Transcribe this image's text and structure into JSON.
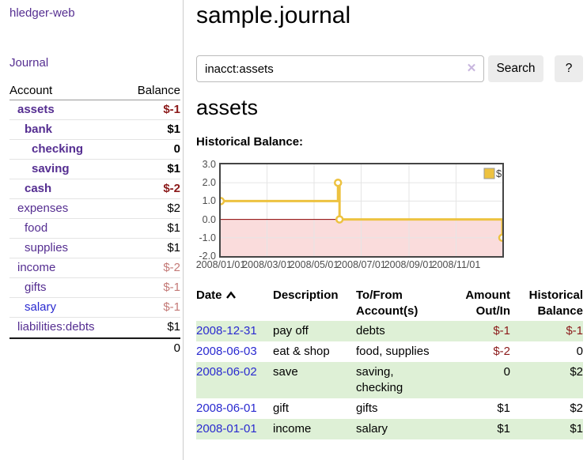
{
  "colors": {
    "link_visited_purple": "#552e91",
    "link_unvisited_blue": "#2a2ad0",
    "negative_red": "#8b1a1a",
    "negative_soft_red": "#c47a77",
    "row_stripe_green": "#def0d6",
    "button_gray": "#ececec"
  },
  "sidebar": {
    "brand": "hledger-web",
    "nav": [
      {
        "label": "Journal"
      }
    ],
    "accounts_table": {
      "headers": [
        "Account",
        "Balance"
      ],
      "rows": [
        {
          "account": "assets",
          "depth": 1,
          "emph": true,
          "link": "visited",
          "balance": "$-1",
          "bal_class": "neg"
        },
        {
          "account": "bank",
          "depth": 2,
          "emph": true,
          "link": "visited",
          "balance": "$1",
          "bal_class": "pos"
        },
        {
          "account": "checking",
          "depth": 3,
          "emph": true,
          "link": "visited",
          "balance": "0",
          "bal_class": "pos"
        },
        {
          "account": "saving",
          "depth": 3,
          "emph": true,
          "link": "visited",
          "balance": "$1",
          "bal_class": "pos"
        },
        {
          "account": "cash",
          "depth": 2,
          "emph": true,
          "link": "visited",
          "balance": "$-2",
          "bal_class": "neg"
        },
        {
          "account": "expenses",
          "depth": 1,
          "emph": false,
          "link": "visited",
          "balance": "$2",
          "bal_class": "pos"
        },
        {
          "account": "food",
          "depth": 2,
          "emph": false,
          "link": "visited",
          "balance": "$1",
          "bal_class": "pos"
        },
        {
          "account": "supplies",
          "depth": 2,
          "emph": false,
          "link": "visited",
          "balance": "$1",
          "bal_class": "pos"
        },
        {
          "account": "income",
          "depth": 1,
          "emph": false,
          "link": "visited",
          "balance": "$-2",
          "bal_class": "neg-soft"
        },
        {
          "account": "gifts",
          "depth": 2,
          "emph": false,
          "link": "visited",
          "balance": "$-1",
          "bal_class": "neg-soft"
        },
        {
          "account": "salary",
          "depth": 2,
          "emph": false,
          "link": "unvisited",
          "balance": "$-1",
          "bal_class": "neg-soft"
        },
        {
          "account": "liabilities:debts",
          "depth": 1,
          "emph": false,
          "link": "visited",
          "balance": "$1",
          "bal_class": "pos"
        }
      ],
      "total": "0"
    }
  },
  "header": {
    "title": "sample.journal"
  },
  "search": {
    "value": "inacct:assets",
    "clear_icon": "✕",
    "button_label": "Search",
    "help_label": "?"
  },
  "account_page": {
    "title": "assets",
    "chart_label": "Historical Balance:"
  },
  "chart_data": {
    "type": "line",
    "step": true,
    "title": "Historical Balance:",
    "series": [
      {
        "name": "$",
        "color": "#edc240",
        "points": [
          {
            "x": "2008-01-01",
            "y": 1
          },
          {
            "x": "2008-06-01",
            "y": 2
          },
          {
            "x": "2008-06-03",
            "y": 0
          },
          {
            "x": "2008-12-31",
            "y": -1
          }
        ]
      }
    ],
    "xrange": [
      "2008-01-01",
      "2008-12-31"
    ],
    "ylim": [
      -2,
      3
    ],
    "yticks": [
      3.0,
      2.0,
      1.0,
      0.0,
      -1.0,
      -2.0
    ],
    "xticks": [
      {
        "x": "2008-01-01",
        "label": "2008/01/01"
      },
      {
        "x": "2008-03-01",
        "label": "2008/03/01"
      },
      {
        "x": "2008-05-01",
        "label": "2008/05/01"
      },
      {
        "x": "2008-07-01",
        "label": "2008/07/01"
      },
      {
        "x": "2008-09-01",
        "label": "2008/09/01"
      },
      {
        "x": "2008-11-01",
        "label": "2008/11/01"
      }
    ],
    "grid": true,
    "grid_color": "#e5e5e5",
    "border_color": "#454545",
    "negative_fill": "#fadcdc",
    "zero_line_color": "#8b0000",
    "legend": {
      "position": "top-right",
      "label": "$",
      "swatch": "#edc240"
    }
  },
  "register": {
    "columns": [
      {
        "label": "Date",
        "sort": "asc"
      },
      {
        "label": "Description"
      },
      {
        "label": "To/From Account(s)"
      },
      {
        "label": "Amount Out/In",
        "align": "right"
      },
      {
        "label": "Historical Balance",
        "align": "right"
      }
    ],
    "rows": [
      {
        "date": "2008-12-31",
        "description": "pay off",
        "accounts": "debts",
        "amount": "$-1",
        "amount_class": "neg",
        "balance": "$-1",
        "balance_class": "neg"
      },
      {
        "date": "2008-06-03",
        "description": "eat & shop",
        "accounts": "food, supplies",
        "amount": "$-2",
        "amount_class": "neg",
        "balance": "0",
        "balance_class": "pos"
      },
      {
        "date": "2008-06-02",
        "description": "save",
        "accounts": "saving, checking",
        "amount": "0",
        "amount_class": "pos",
        "balance": "$2",
        "balance_class": "pos"
      },
      {
        "date": "2008-06-01",
        "description": "gift",
        "accounts": "gifts",
        "amount": "$1",
        "amount_class": "pos",
        "balance": "$2",
        "balance_class": "pos"
      },
      {
        "date": "2008-01-01",
        "description": "income",
        "accounts": "salary",
        "amount": "$1",
        "amount_class": "pos",
        "balance": "$1",
        "balance_class": "pos"
      }
    ]
  }
}
